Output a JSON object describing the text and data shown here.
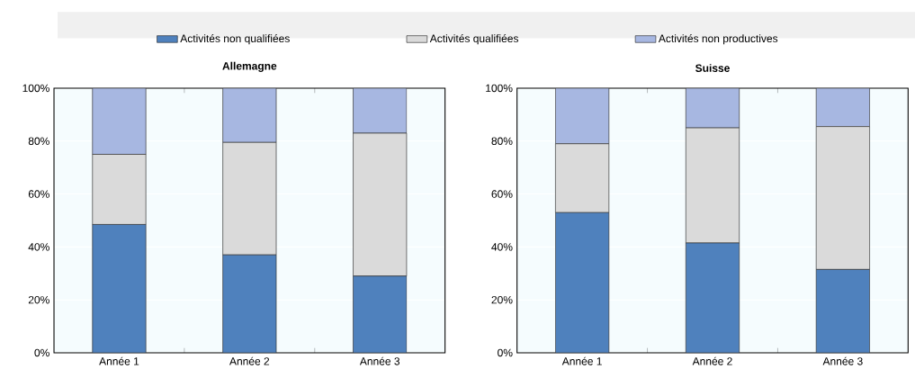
{
  "chart_data": [
    {
      "type": "bar",
      "title": "Allemagne",
      "stacked": true,
      "categories": [
        "Année 1",
        "Année 2",
        "Année 3"
      ],
      "series": [
        {
          "name": "Activités non qualifiées",
          "color": "#4f81bd",
          "values": [
            48.5,
            37,
            29
          ]
        },
        {
          "name": "Activités qualifiées",
          "color": "#dadada",
          "values": [
            26.5,
            42.5,
            54
          ]
        },
        {
          "name": "Activités non productives",
          "color": "#a7b7e1",
          "values": [
            25,
            20.5,
            17
          ]
        }
      ],
      "ylim": [
        0,
        100
      ],
      "yticks": [
        {
          "value": 0,
          "label": "0%"
        },
        {
          "value": 20,
          "label": "20%"
        },
        {
          "value": 40,
          "label": "40%"
        },
        {
          "value": 60,
          "label": "60%"
        },
        {
          "value": 80,
          "label": "80%"
        },
        {
          "value": 100,
          "label": "100%"
        }
      ],
      "grid": "y",
      "legend": "top"
    },
    {
      "type": "bar",
      "title": "Suisse",
      "stacked": true,
      "categories": [
        "Année 1",
        "Année 2",
        "Année 3"
      ],
      "series": [
        {
          "color": "#4f81bd",
          "values": [
            53,
            41.5,
            31.5
          ]
        },
        {
          "color": "#dadada",
          "values": [
            26,
            43.5,
            54
          ]
        },
        {
          "color": "#a7b7e1",
          "values": [
            21,
            15,
            14.5
          ]
        }
      ],
      "ylim": [
        0,
        100
      ],
      "yticks": [
        {
          "value": 0,
          "label": "0%"
        },
        {
          "value": 20,
          "label": "20%"
        },
        {
          "value": 40,
          "label": "40%"
        },
        {
          "value": 60,
          "label": "60%"
        },
        {
          "value": 80,
          "label": "80%"
        },
        {
          "value": 100,
          "label": "100%"
        }
      ],
      "grid": "y"
    }
  ]
}
